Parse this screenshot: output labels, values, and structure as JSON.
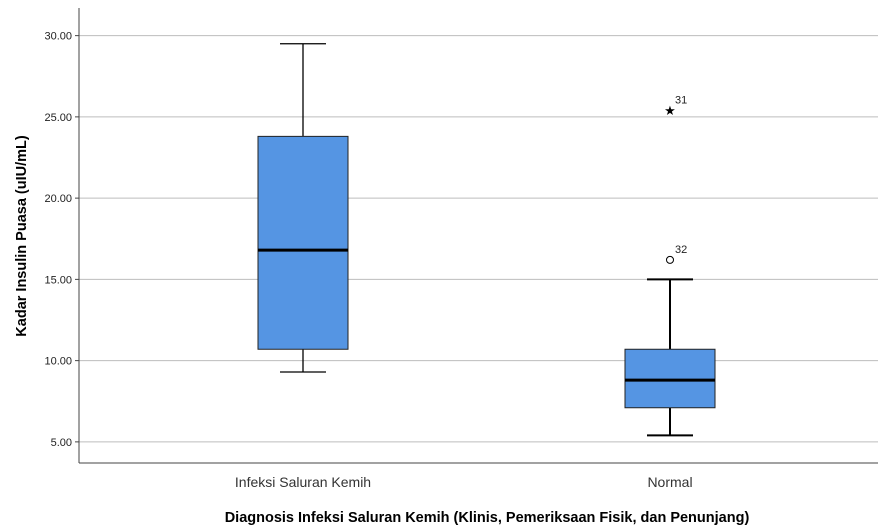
{
  "chart_data": {
    "type": "boxplot",
    "xlabel": "Diagnosis Infeksi Saluran Kemih (Klinis, Pemeriksaan Fisik, dan Penunjang)",
    "ylabel": "Kadar Insulin Puasa (uIU/mL)",
    "ylim": [
      3.7,
      31.7
    ],
    "yticks": [
      "5.00",
      "10.00",
      "15.00",
      "20.00",
      "25.00",
      "30.00"
    ],
    "ytick_values": [
      5,
      10,
      15,
      20,
      25,
      30
    ],
    "grid": true,
    "box_color": "#5595e3",
    "categories": [
      "Infeksi Saluran Kemih",
      "Normal"
    ],
    "boxes": [
      {
        "category": "Infeksi Saluran Kemih",
        "min": 9.3,
        "q1": 10.7,
        "median": 16.8,
        "q3": 23.8,
        "max": 29.5,
        "outliers": []
      },
      {
        "category": "Normal",
        "min": 5.4,
        "q1": 7.1,
        "median": 8.8,
        "q3": 10.7,
        "max": 15.0,
        "outliers": [
          {
            "value": 25.4,
            "label": "31",
            "marker": "star"
          },
          {
            "value": 16.2,
            "label": "32",
            "marker": "circle"
          }
        ]
      }
    ]
  }
}
